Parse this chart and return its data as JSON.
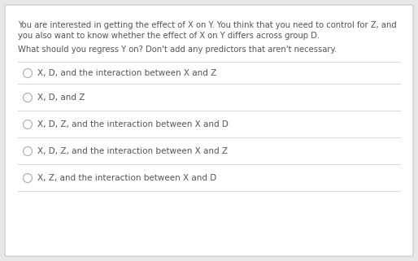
{
  "bg_color": "#e8e8e8",
  "box_color": "#ffffff",
  "border_color": "#c8c8c8",
  "text_color": "#555555",
  "question_text_line1": "You are interested in getting the effect of X on Y. You think that you need to control for Z, and",
  "question_text_line2": "you also want to know whether the effect of X on Y differs across group D.",
  "instruction_text": "What should you regress Y on? Don't add any predictors that aren't necessary.",
  "options": [
    "X, D, and the interaction between X and Z",
    "X, D, and Z",
    "X, D, Z, and the interaction between X and D",
    "X, D, Z, and the interaction between X and Z",
    "X, Z, and the interaction between X and D"
  ],
  "divider_color": "#d8d8d8",
  "circle_edge_color": "#b0b0b0",
  "font_size_question": 7.2,
  "font_size_instruction": 7.2,
  "font_size_option": 7.5
}
